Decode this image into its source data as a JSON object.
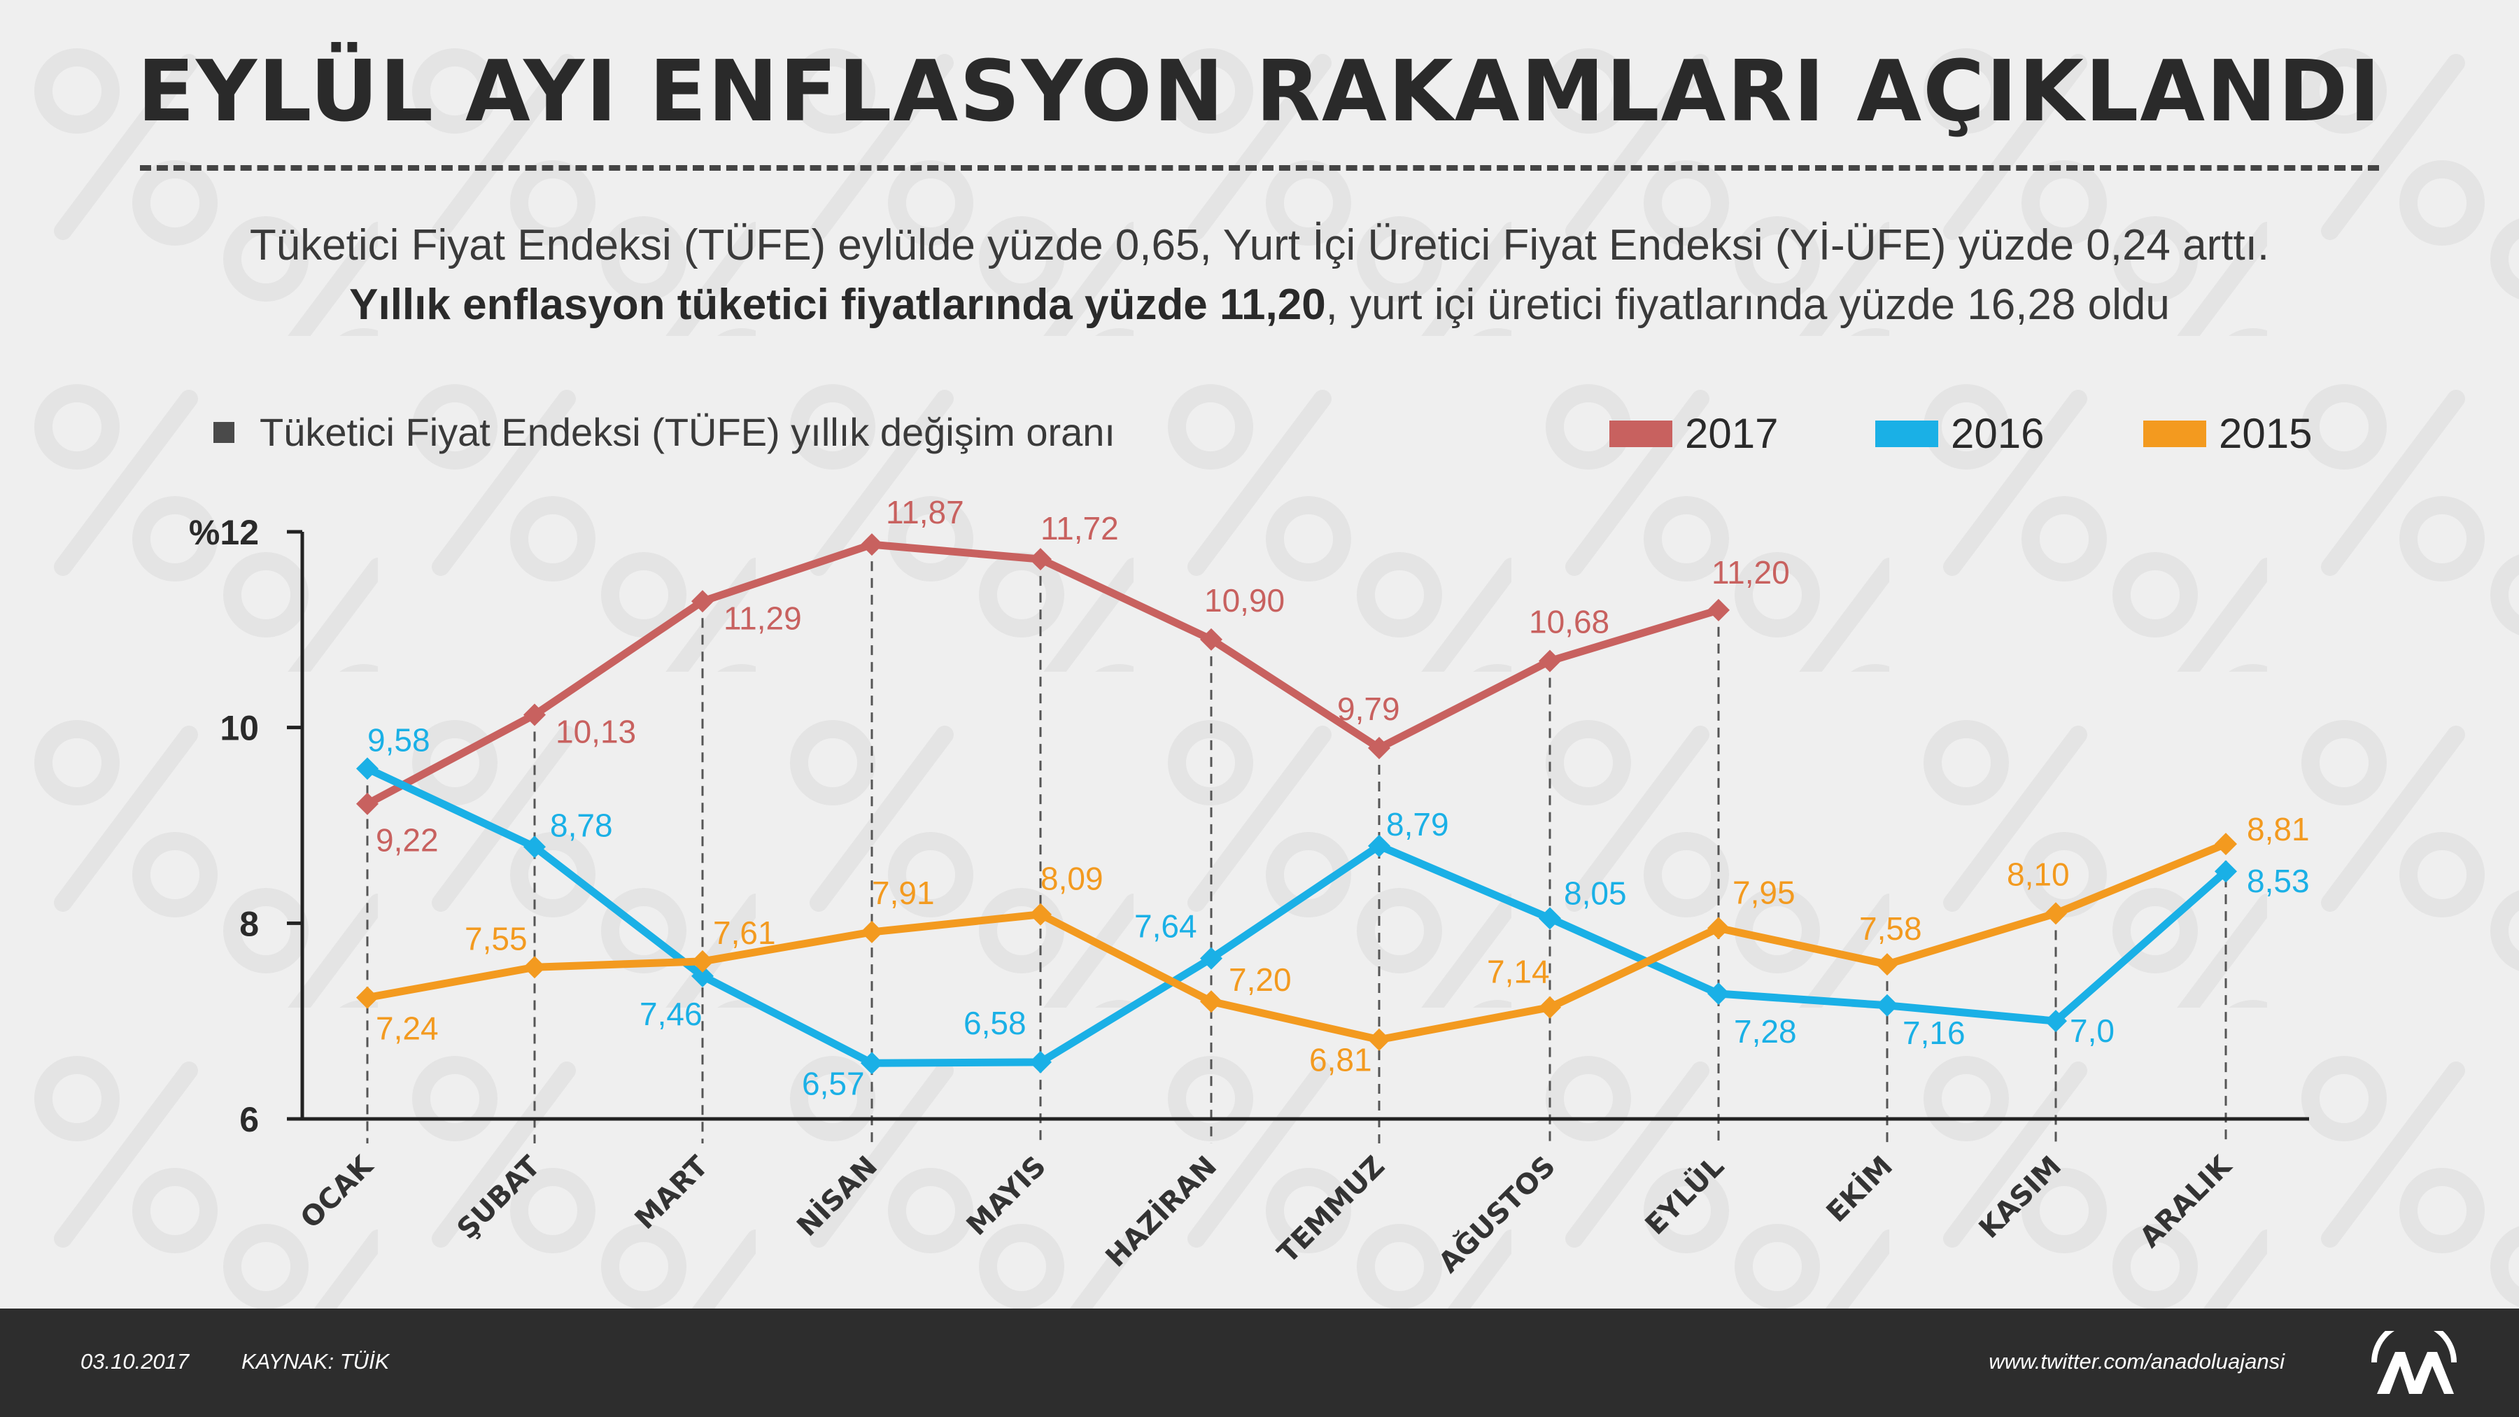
{
  "title": "EYLÜL AYI ENFLASYON RAKAMLARI AÇIKLANDI",
  "subtitle_line1": "Tüketici Fiyat Endeksi (TÜFE) eylülde yüzde 0,65, Yurt İçi Üretici Fiyat Endeksi (Yİ-ÜFE) yüzde 0,24 arttı.",
  "subtitle_line2_bold": "Yıllık enflasyon tüketici fiyatlarında yüzde 11,20",
  "subtitle_line2_rest": ", yurt içi üretici fiyatlarında yüzde 16,28 oldu",
  "chart_caption": "Tüketici Fiyat Endeksi (TÜFE) yıllık değişim oranı",
  "footer": {
    "date": "03.10.2017",
    "source": "KAYNAK: TÜİK",
    "twitter": "www.twitter.com/anadoluajansi"
  },
  "colors": {
    "s2017": "#c8615f",
    "s2016": "#1ab0e6",
    "s2015": "#f39a1f"
  },
  "chart_data": {
    "type": "line",
    "ylim": [
      6,
      12
    ],
    "yticks": [
      "%12",
      "10",
      "8",
      "6"
    ],
    "ytick_values": [
      12,
      10,
      8,
      6
    ],
    "categories": [
      "OCAK",
      "ŞUBAT",
      "MART",
      "NİSAN",
      "MAYIS",
      "HAZİRAN",
      "TEMMUZ",
      "AĞUSTOS",
      "EYLÜL",
      "EKİM",
      "KASIM",
      "ARALIK"
    ],
    "series": [
      {
        "name": "2017",
        "color": "#c8615f",
        "values": [
          9.22,
          10.13,
          11.29,
          11.87,
          11.72,
          10.9,
          9.79,
          10.68,
          11.2,
          null,
          null,
          null
        ],
        "labels": [
          "9,22",
          "10,13",
          "11,29",
          "11,87",
          "11,72",
          "10,90",
          "9,79",
          "10,68",
          "11,20",
          null,
          null,
          null
        ]
      },
      {
        "name": "2016",
        "color": "#1ab0e6",
        "values": [
          9.58,
          8.78,
          7.46,
          6.57,
          6.58,
          7.64,
          8.79,
          8.05,
          7.28,
          7.16,
          7.0,
          8.53
        ],
        "labels": [
          "9,58",
          "8,78",
          "7,46",
          "6,57",
          "6,58",
          "7,64",
          "8,79",
          "8,05",
          "7,28",
          "7,16",
          "7,0",
          "8,53"
        ]
      },
      {
        "name": "2015",
        "color": "#f39a1f",
        "values": [
          7.24,
          7.55,
          7.61,
          7.91,
          8.09,
          7.2,
          6.81,
          7.14,
          7.95,
          7.58,
          8.1,
          8.81
        ],
        "labels": [
          "7,24",
          "7,55",
          "7,61",
          "7,91",
          "8,09",
          "7,20",
          "6,81",
          "7,14",
          "7,95",
          "7,58",
          "8,10",
          "8,81"
        ]
      }
    ]
  }
}
